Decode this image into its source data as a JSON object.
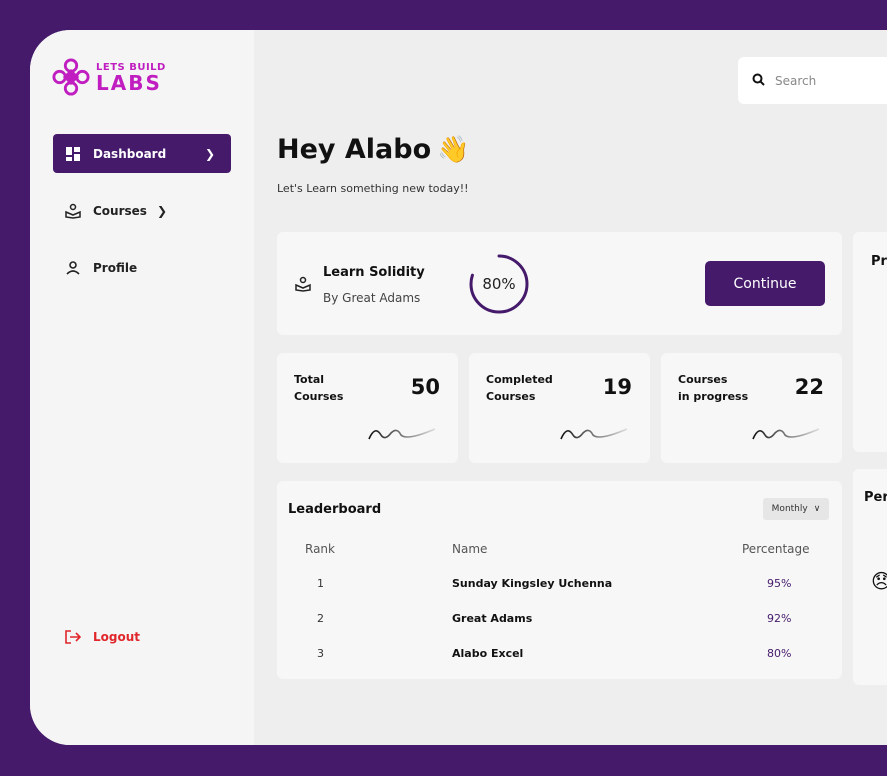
{
  "brand": {
    "line1": "LETS BUILD",
    "line2": "LABS"
  },
  "sidebar": {
    "items": [
      {
        "label": "Dashboard",
        "icon": "dashboard-icon"
      },
      {
        "label": "Courses",
        "icon": "book-icon"
      },
      {
        "label": "Profile",
        "icon": "user-icon"
      }
    ],
    "logout": "Logout"
  },
  "search": {
    "placeholder": "Search"
  },
  "greeting": {
    "title": "Hey Alabo",
    "emoji": "👋",
    "subtitle": "Let's Learn something new today!!"
  },
  "current_course": {
    "title": "Learn Solidity",
    "author": "By Great Adams",
    "progress": 0.8,
    "progress_label": "80%",
    "button": "Continue"
  },
  "stats": [
    {
      "label": "Total\nCourses",
      "value": "50"
    },
    {
      "label": "Completed\nCourses",
      "value": "19"
    },
    {
      "label": "Courses\nin progress",
      "value": "22"
    }
  ],
  "leaderboard": {
    "title": "Leaderboard",
    "filter": "Monthly",
    "columns": [
      "Rank",
      "Name",
      "Percentage"
    ],
    "rows": [
      {
        "rank": "1",
        "name": "Sunday Kingsley Uchenna",
        "pct": "95%"
      },
      {
        "rank": "2",
        "name": "Great Adams",
        "pct": "92%"
      },
      {
        "rank": "3",
        "name": "Alabo Excel",
        "pct": "80%"
      }
    ]
  },
  "side_panels": {
    "panel1_title": "Pr",
    "panel2_title": "Per",
    "panel2_emoji": "😞"
  },
  "colors": {
    "primary": "#451a6b",
    "brand": "#c01ec0",
    "danger": "#e0262b"
  }
}
